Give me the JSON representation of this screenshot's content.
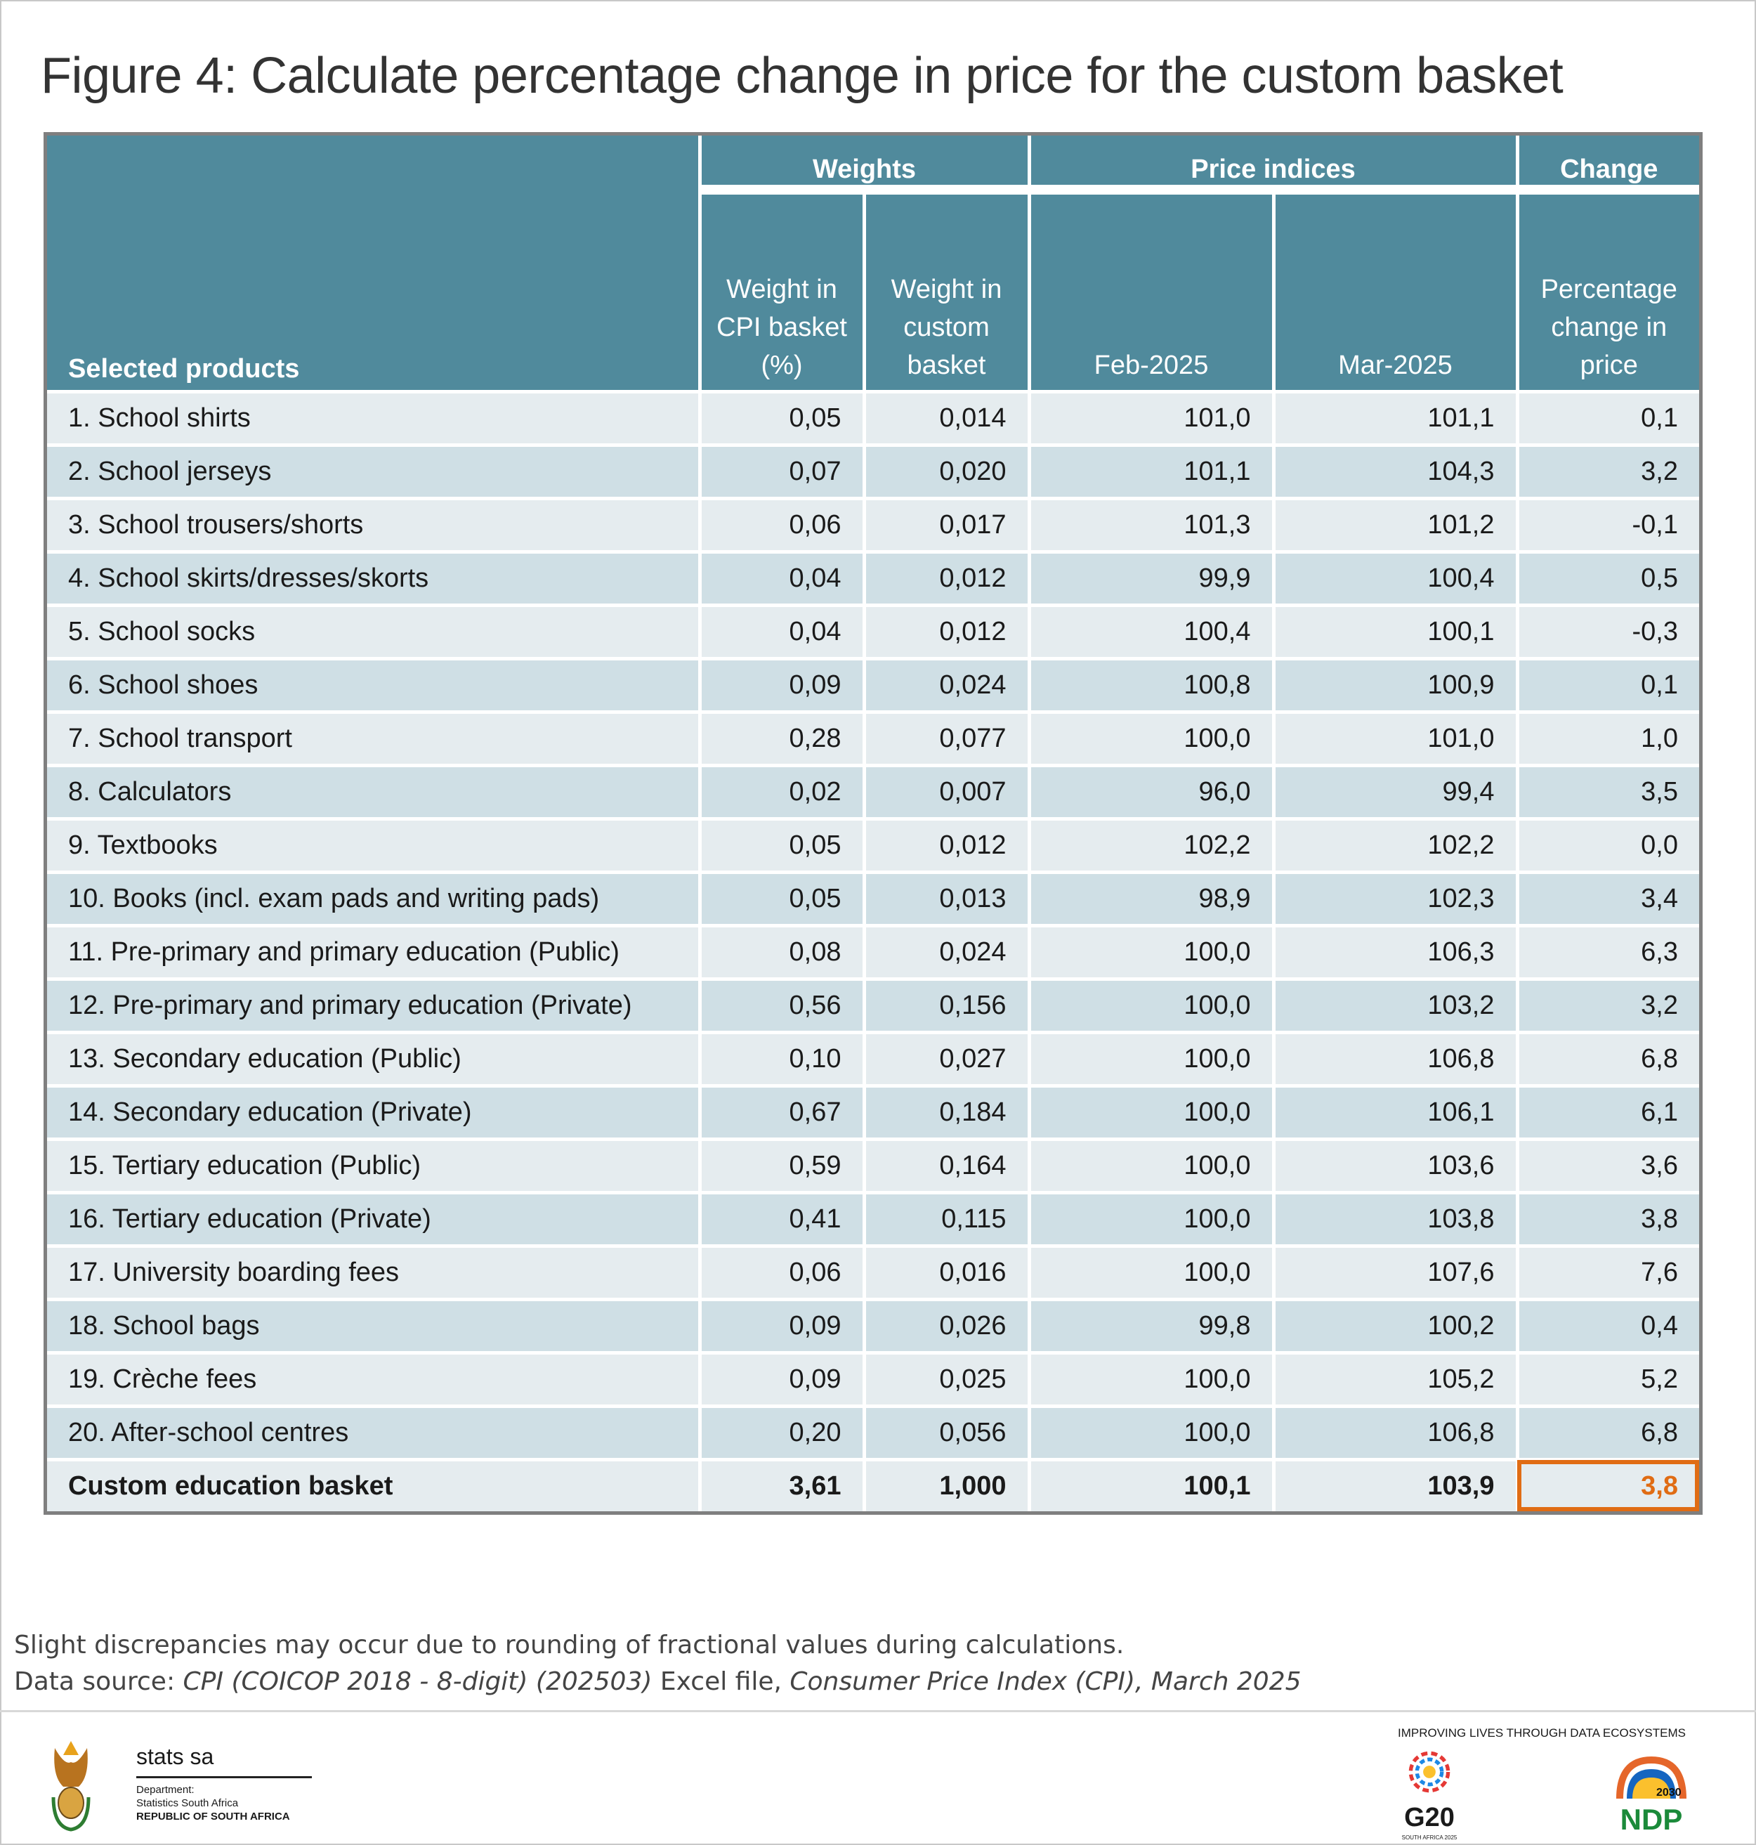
{
  "title": "Figure 4: Calculate percentage change in price for the custom basket",
  "table": {
    "group_headers": {
      "weights": "Weights",
      "price_indices": "Price indices",
      "change": "Change"
    },
    "columns": {
      "product": "Selected products",
      "cpi_weight": "Weight in CPI basket (%)",
      "custom_weight": "Weight in custom basket",
      "feb": "Feb-2025",
      "mar": "Mar-2025",
      "pct": "Percentage change in price"
    },
    "rows": [
      [
        "1. School shirts",
        "0,05",
        "0,014",
        "101,0",
        "101,1",
        "0,1"
      ],
      [
        "2. School jerseys",
        "0,07",
        "0,020",
        "101,1",
        "104,3",
        "3,2"
      ],
      [
        "3. School trousers/shorts",
        "0,06",
        "0,017",
        "101,3",
        "101,2",
        "-0,1"
      ],
      [
        "4. School skirts/dresses/skorts",
        "0,04",
        "0,012",
        "99,9",
        "100,4",
        "0,5"
      ],
      [
        "5. School socks",
        "0,04",
        "0,012",
        "100,4",
        "100,1",
        "-0,3"
      ],
      [
        "6. School shoes",
        "0,09",
        "0,024",
        "100,8",
        "100,9",
        "0,1"
      ],
      [
        "7. School transport",
        "0,28",
        "0,077",
        "100,0",
        "101,0",
        "1,0"
      ],
      [
        "8. Calculators",
        "0,02",
        "0,007",
        "96,0",
        "99,4",
        "3,5"
      ],
      [
        "9. Textbooks",
        "0,05",
        "0,012",
        "102,2",
        "102,2",
        "0,0"
      ],
      [
        "10. Books (incl. exam pads and writing pads)",
        "0,05",
        "0,013",
        "98,9",
        "102,3",
        "3,4"
      ],
      [
        "11. Pre-primary and primary education (Public)",
        "0,08",
        "0,024",
        "100,0",
        "106,3",
        "6,3"
      ],
      [
        "12. Pre-primary and primary education (Private)",
        "0,56",
        "0,156",
        "100,0",
        "103,2",
        "3,2"
      ],
      [
        "13. Secondary education (Public)",
        "0,10",
        "0,027",
        "100,0",
        "106,8",
        "6,8"
      ],
      [
        "14. Secondary education (Private)",
        "0,67",
        "0,184",
        "100,0",
        "106,1",
        "6,1"
      ],
      [
        "15. Tertiary education (Public)",
        "0,59",
        "0,164",
        "100,0",
        "103,6",
        "3,6"
      ],
      [
        "16. Tertiary education (Private)",
        "0,41",
        "0,115",
        "100,0",
        "103,8",
        "3,8"
      ],
      [
        "17. University boarding fees",
        "0,06",
        "0,016",
        "100,0",
        "107,6",
        "7,6"
      ],
      [
        "18. School bags",
        "0,09",
        "0,026",
        "99,8",
        "100,2",
        "0,4"
      ],
      [
        "19. Crèche fees",
        "0,09",
        "0,025",
        "100,0",
        "105,2",
        "5,2"
      ],
      [
        "20. After-school centres",
        "0,20",
        "0,056",
        "100,0",
        "106,8",
        "6,8"
      ]
    ],
    "total": [
      "Custom education basket",
      "3,61",
      "1,000",
      "100,1",
      "103,9",
      "3,8"
    ]
  },
  "notes": {
    "line1": "Slight discrepancies may occur due to rounding of fractional values during calculations.",
    "source_prefix": "Data source: ",
    "source_file": "CPI (COICOP 2018 - 8-digit) (202503)",
    "source_mid": " Excel file, ",
    "source_pub": "Consumer Price Index (CPI), March 2025"
  },
  "footer": {
    "org": "stats sa",
    "dept_line1": "Department:",
    "dept_line2": "Statistics South Africa",
    "dept_line3": "REPUBLIC OF SOUTH AFRICA",
    "tagline": "IMPROVING LIVES THROUGH DATA ECOSYSTEMS",
    "g20": "G20",
    "g20_sub": "SOUTH AFRICA 2025",
    "ndp": "NDP",
    "ndp_year": "2030"
  },
  "colors": {
    "header": "#508a9c",
    "row_light": "#e5ecef",
    "row_dark": "#cfdfe5",
    "highlight": "#e06c14"
  }
}
